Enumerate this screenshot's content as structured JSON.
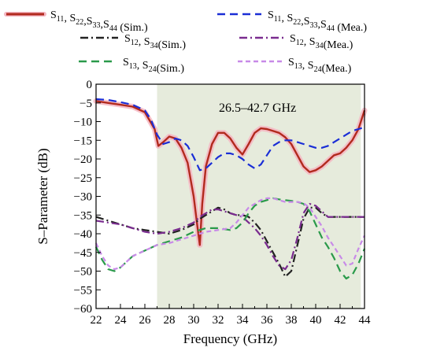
{
  "chart_data": {
    "type": "line",
    "xlabel": "Frequency (GHz)",
    "ylabel": "S–Parameter  (dB)",
    "xlim": [
      22,
      44
    ],
    "ylim": [
      -60,
      0
    ],
    "xticks": [
      22,
      24,
      26,
      28,
      30,
      32,
      34,
      36,
      38,
      40,
      42,
      44
    ],
    "yticks": [
      0,
      -5,
      -10,
      -15,
      -20,
      -25,
      -30,
      -35,
      -40,
      -45,
      -50,
      -55,
      -60
    ],
    "tick_labels_x": [
      "22",
      "24",
      "26",
      "28",
      "30",
      "32",
      "34",
      "36",
      "38",
      "40",
      "42",
      "44"
    ],
    "tick_labels_y": [
      "0",
      "−5",
      "−10",
      "−15",
      "−20",
      "−25",
      "−30",
      "−35",
      "−40",
      "−45",
      "−50",
      "−55",
      "−60"
    ],
    "grid": false,
    "legend_position": "top",
    "band": {
      "x0": 27,
      "x1": 43.7,
      "color": "#e6ebdc",
      "label": "26.5–42.7 GHz"
    },
    "series": [
      {
        "sub": [
          "11",
          "22",
          "33",
          "44"
        ],
        "suffix": "(Sim.)",
        "color": "#b22a1e",
        "glow": "#f4b6c2",
        "dash": "solid",
        "x": [
          22,
          23,
          24,
          25,
          26,
          26.8,
          27.1,
          27.5,
          28,
          28.5,
          29,
          29.5,
          30,
          30.3,
          30.5,
          30.7,
          31,
          31.5,
          32,
          32.5,
          33,
          33.5,
          34,
          34.5,
          35,
          35.5,
          36,
          36.5,
          37,
          37.5,
          38,
          38.5,
          39,
          39.5,
          40,
          40.5,
          41,
          41.5,
          42,
          42.5,
          43,
          43.5,
          44
        ],
        "y": [
          -4.5,
          -5,
          -5.5,
          -6,
          -7.5,
          -12,
          -16.5,
          -15.5,
          -14,
          -14.5,
          -17,
          -21,
          -30,
          -38,
          -43,
          -32,
          -22,
          -16,
          -13,
          -13,
          -14.5,
          -17,
          -18.8,
          -16,
          -13,
          -11.8,
          -12,
          -12.5,
          -13,
          -14.2,
          -16,
          -19,
          -22,
          -23.5,
          -23,
          -22,
          -20.5,
          -19,
          -18.5,
          -17,
          -15,
          -12,
          -7
        ]
      },
      {
        "sub": [
          "11",
          "22",
          "33",
          "44"
        ],
        "suffix": "(Mea.)",
        "color": "#1a2ed6",
        "dash": "dash",
        "x": [
          22,
          23,
          24,
          25,
          26,
          26.5,
          27,
          27.5,
          28,
          28.5,
          29,
          29.5,
          30,
          30.5,
          31,
          31.5,
          32,
          32.5,
          33,
          33.5,
          34,
          34.5,
          35,
          35.5,
          36,
          36.5,
          37,
          37.5,
          38,
          38.5,
          39,
          39.5,
          40,
          40.5,
          41,
          41.5,
          42,
          42.5,
          43,
          43.5,
          44
        ],
        "y": [
          -4,
          -4.2,
          -4.8,
          -5.5,
          -7,
          -9.5,
          -13.5,
          -16,
          -15.5,
          -14.5,
          -15,
          -16.5,
          -19.5,
          -23,
          -22.5,
          -21,
          -19.5,
          -18.5,
          -18.5,
          -19,
          -20,
          -21.5,
          -22.5,
          -21.5,
          -19,
          -16.5,
          -15.5,
          -15,
          -15,
          -15.5,
          -16,
          -16.5,
          -17,
          -17,
          -16.5,
          -15.5,
          -14.5,
          -13.5,
          -12.5,
          -12,
          -11.5
        ]
      },
      {
        "sub": [
          "12",
          "34"
        ],
        "suffix": "(Sim.)",
        "color": "#222222",
        "dash": "dashdot",
        "x": [
          22,
          23,
          24,
          25,
          26,
          27,
          28,
          29,
          30,
          30.5,
          31,
          31.5,
          32,
          32.5,
          33,
          33.5,
          34,
          34.5,
          35,
          35.5,
          36,
          36.5,
          37,
          37.5,
          38,
          38.5,
          39,
          39.5,
          40,
          40.5,
          41,
          42,
          43,
          44
        ],
        "y": [
          -35.5,
          -36.5,
          -37.5,
          -38.5,
          -39,
          -39.5,
          -40,
          -39,
          -37.5,
          -36,
          -35,
          -34,
          -33,
          -33.5,
          -34.5,
          -35,
          -35,
          -35.5,
          -37,
          -39,
          -42,
          -45,
          -48,
          -51.5,
          -50,
          -43,
          -36,
          -33,
          -33,
          -34.5,
          -35.5,
          -35.5,
          -35.5,
          -35.5
        ]
      },
      {
        "sub": [
          "12",
          "34"
        ],
        "suffix": "(Mea.)",
        "color": "#7a2c8f",
        "dash": "dashdot",
        "x": [
          22,
          23,
          24,
          25,
          26,
          27,
          28,
          29,
          30,
          30.5,
          31,
          31.5,
          32,
          32.5,
          33,
          33.5,
          34,
          34.5,
          35,
          35.5,
          36,
          36.5,
          37,
          37.5,
          38,
          38.5,
          39,
          39.5,
          40,
          40.5,
          41,
          42,
          43,
          44
        ],
        "y": [
          -36.5,
          -37,
          -37.5,
          -38.5,
          -39.5,
          -40,
          -39.5,
          -38.5,
          -37,
          -35.5,
          -34.5,
          -33.5,
          -33.5,
          -34,
          -34.5,
          -35,
          -35.5,
          -37,
          -38.5,
          -40.5,
          -43,
          -46,
          -48.5,
          -49.5,
          -47,
          -41,
          -34.5,
          -32,
          -32.5,
          -34,
          -35.5,
          -35.5,
          -35.5,
          -35.5
        ]
      },
      {
        "sub": [
          "13",
          "24"
        ],
        "suffix": "(Sim.)",
        "color": "#2a9a4a",
        "dash": "dash",
        "x": [
          22,
          22.5,
          23,
          23.5,
          24,
          24.5,
          25,
          26,
          27,
          28,
          29,
          30,
          31,
          32,
          33,
          33.5,
          34,
          34.5,
          35,
          35.5,
          36,
          36.5,
          37,
          37.5,
          38,
          38.5,
          39,
          39.5,
          40,
          40.5,
          41,
          41.5,
          42,
          42.5,
          43,
          43.5,
          44
        ],
        "y": [
          -43.5,
          -47,
          -49.5,
          -50,
          -49,
          -47.5,
          -46,
          -44.5,
          -43,
          -42,
          -41,
          -39.5,
          -38.5,
          -38.5,
          -39,
          -38.5,
          -37,
          -34.5,
          -32.5,
          -31.5,
          -31,
          -30.5,
          -30.8,
          -31,
          -31.2,
          -31.5,
          -32,
          -34,
          -37.5,
          -41,
          -43.5,
          -46.5,
          -50,
          -52,
          -51,
          -48,
          -44
        ]
      },
      {
        "sub": [
          "13",
          "24"
        ],
        "suffix": "(Mea.)",
        "color": "#c88ae8",
        "dash": "shortdash",
        "x": [
          22,
          22.5,
          23,
          23.5,
          24,
          24.5,
          25,
          26,
          27,
          28,
          29,
          30,
          31,
          32,
          33,
          33.5,
          34,
          34.5,
          35,
          35.5,
          36,
          36.5,
          37,
          37.5,
          38,
          38.5,
          39,
          39.5,
          40,
          40.5,
          41,
          41.5,
          42,
          42.5,
          43,
          43.5,
          44
        ],
        "y": [
          -42.5,
          -46,
          -48.5,
          -49.5,
          -49,
          -47.5,
          -46,
          -44.5,
          -43,
          -42.5,
          -41.5,
          -40.5,
          -39.5,
          -39,
          -38.5,
          -37,
          -35,
          -33,
          -32,
          -31,
          -30.5,
          -30.5,
          -31,
          -31.5,
          -31.5,
          -31.5,
          -31.8,
          -33,
          -35.5,
          -38,
          -41,
          -43.5,
          -46,
          -48.5,
          -48,
          -44,
          -40.5
        ]
      }
    ]
  }
}
